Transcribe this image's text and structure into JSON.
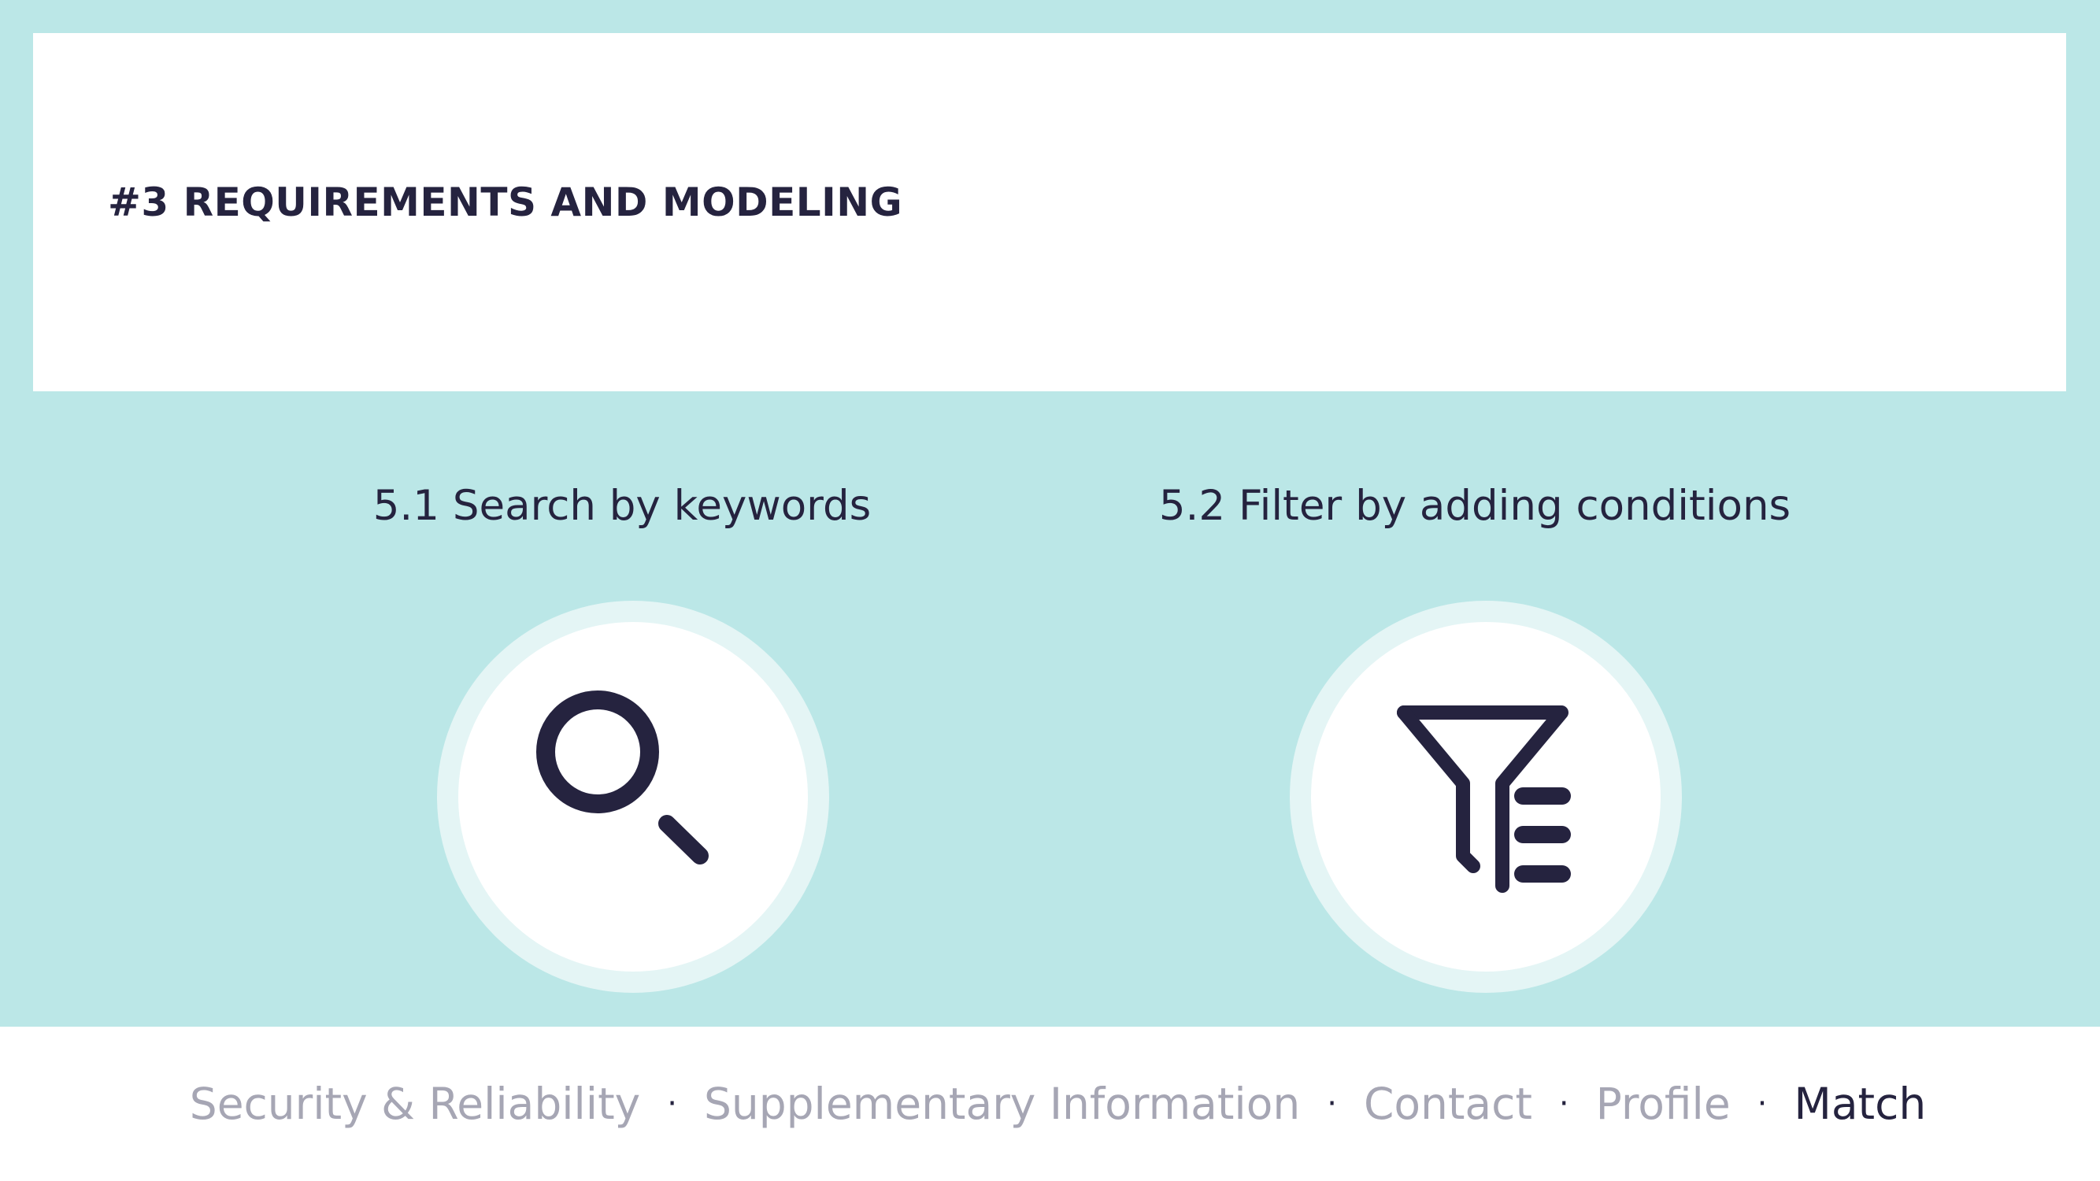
{
  "header": {
    "title": "#3 REQUIREMENTS AND MODELING"
  },
  "features": [
    {
      "title": "5.1 Search by keywords",
      "icon": "search-icon"
    },
    {
      "title": "5.2 Filter by adding conditions",
      "icon": "filter-list-icon"
    }
  ],
  "footer": {
    "separator": "·",
    "nav": [
      {
        "label": "Security & Reliability",
        "active": false
      },
      {
        "label": "Supplementary Information",
        "active": false
      },
      {
        "label": "Contact",
        "active": false
      },
      {
        "label": "Profile",
        "active": false
      },
      {
        "label": "Match",
        "active": true
      }
    ]
  },
  "colors": {
    "background": "#bbe7e7",
    "card": "#ffffff",
    "text_dark": "#25233f",
    "nav_inactive": "#a6a6b4",
    "circle_ring": "#e4f5f5"
  }
}
